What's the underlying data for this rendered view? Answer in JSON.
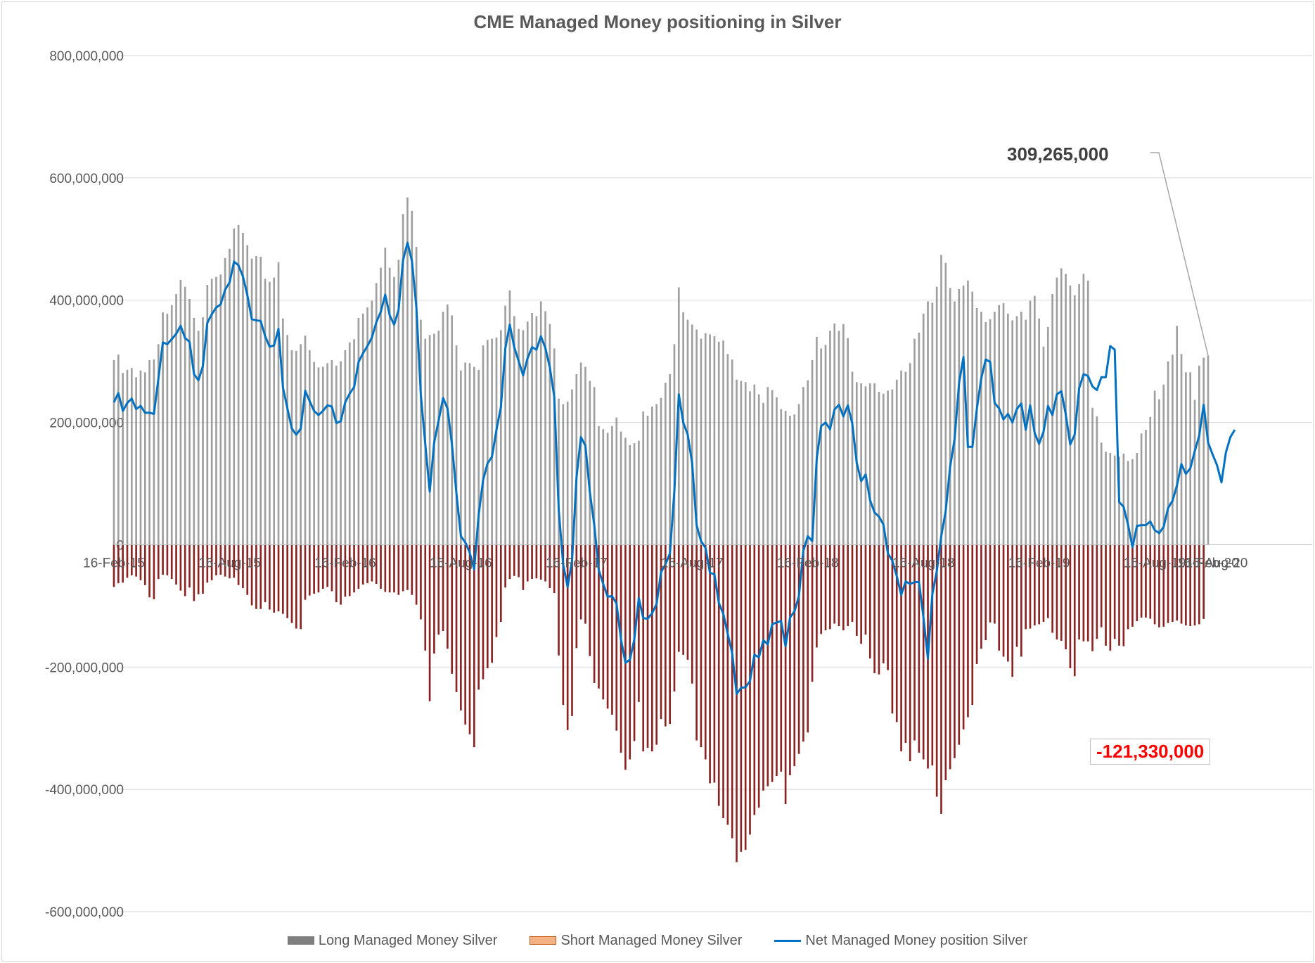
{
  "chart_data": {
    "type": "bar",
    "title": "CME Managed Money positioning in Silver",
    "ylim": [
      -600000000,
      800000000
    ],
    "yticks": [
      800000000,
      600000000,
      400000000,
      200000000,
      0,
      -200000000,
      -400000000,
      -600000000
    ],
    "ytick_labels": [
      "800,000,000",
      "600,000,000",
      "400,000,000",
      "200,000,000",
      "0",
      "-200,000,000",
      "-400,000,000",
      "-600,000,000"
    ],
    "x_tick_labels": [
      "16-Feb-15",
      "16-Aug-15",
      "16-Feb-16",
      "16-Aug-16",
      "16-Feb-17",
      "16-Aug-17",
      "16-Feb-18",
      "16-Aug-18",
      "16-Feb-19",
      "16-Aug-19",
      "16-Feb-20",
      "16-Aug-20"
    ],
    "x_start": "2015-02-16",
    "period": "weekly",
    "grid": true,
    "legend_position": "bottom",
    "colors": {
      "long": "#7f7f7f",
      "short": "#8b2323",
      "net": "#0070c0",
      "grid": "#d9d9d9"
    },
    "series": [
      {
        "name": "Long Managed Money Silver",
        "values": [
          302000000.0,
          311000000.0,
          281000000.0,
          286000000.0,
          289000000.0,
          274000000.0,
          285000000.0,
          282000000.0,
          302000000.0,
          303000000.0,
          328000000.0,
          380000000.0,
          378000000.0,
          392000000.0,
          410000000.0,
          433000000.0,
          422000000.0,
          402000000.0,
          371000000.0,
          350000000.0,
          372000000.0,
          425000000.0,
          435000000.0,
          438000000.0,
          442000000.0,
          469000000.0,
          484000000.0,
          517000000.0,
          523000000.0,
          510000000.0,
          490000000.0,
          468000000.0,
          472000000.0,
          471000000.0,
          435000000.0,
          430000000.0,
          437000000.0,
          462000000.0,
          370000000.0,
          343000000.0,
          318000000.0,
          317000000.0,
          328000000.0,
          342000000.0,
          318000000.0,
          299000000.0,
          290000000.0,
          291000000.0,
          297000000.0,
          302000000.0,
          293000000.0,
          300000000.0,
          318000000.0,
          331000000.0,
          336000000.0,
          371000000.0,
          378000000.0,
          388000000.0,
          399000000.0,
          428000000.0,
          453000000.0,
          486000000.0,
          453000000.0,
          438000000.0,
          466000000.0,
          541000000.0,
          568000000.0,
          546000000.0,
          487000000.0,
          368000000.0,
          337000000.0,
          343000000.0,
          345000000.0,
          350000000.0,
          381000000.0,
          393000000.0,
          375000000.0,
          326000000.0,
          285000000.0,
          298000000.0,
          297000000.0,
          291000000.0,
          286000000.0,
          326000000.0,
          335000000.0,
          337000000.0,
          339000000.0,
          351000000.0,
          391000000.0,
          416000000.0,
          374000000.0,
          353000000.0,
          351000000.0,
          365000000.0,
          379000000.0,
          374000000.0,
          398000000.0,
          382000000.0,
          361000000.0,
          321000000.0,
          239000000.0,
          230000000.0,
          234000000.0,
          254000000.0,
          279000000.0,
          298000000.0,
          291000000.0,
          268000000.0,
          258000000.0,
          194000000.0,
          189000000.0,
          183000000.0,
          194000000.0,
          208000000.0,
          185000000.0,
          175000000.0,
          163000000.0,
          166000000.0,
          170000000.0,
          218000000.0,
          211000000.0,
          226000000.0,
          230000000.0,
          240000000.0,
          265000000.0,
          279000000.0,
          328000000.0,
          421000000.0,
          380000000.0,
          368000000.0,
          360000000.0,
          352000000.0,
          337000000.0,
          346000000.0,
          344000000.0,
          341000000.0,
          332000000.0,
          334000000.0,
          312000000.0,
          303000000.0,
          270000000.0,
          268000000.0,
          266000000.0,
          251000000.0,
          262000000.0,
          246000000.0,
          232000000.0,
          258000000.0,
          253000000.0,
          241000000.0,
          222000000.0,
          219000000.0,
          211000000.0,
          213000000.0,
          230000000.0,
          258000000.0,
          269000000.0,
          302000000.0,
          340000000.0,
          321000000.0,
          327000000.0,
          350000000.0,
          362000000.0,
          350000000.0,
          361000000.0,
          338000000.0,
          283000000.0,
          266000000.0,
          264000000.0,
          259000000.0,
          264000000.0,
          264000000.0,
          250000000.0,
          247000000.0,
          252000000.0,
          254000000.0,
          270000000.0,
          285000000.0,
          283000000.0,
          297000000.0,
          337000000.0,
          347000000.0,
          378000000.0,
          398000000.0,
          396000000.0,
          422000000.0,
          474000000.0,
          461000000.0,
          420000000.0,
          398000000.0,
          418000000.0,
          424000000.0,
          432000000.0,
          414000000.0,
          387000000.0,
          381000000.0,
          364000000.0,
          369000000.0,
          381000000.0,
          392000000.0,
          395000000.0,
          378000000.0,
          367000000.0,
          374000000.0,
          381000000.0,
          368000000.0,
          399000000.0,
          407000000.0,
          370000000.0,
          324000000.0,
          356000000.0,
          410000000.0,
          437000000.0,
          452000000.0,
          443000000.0,
          424000000.0,
          408000000.0,
          426000000.0,
          443000000.0,
          432000000.0,
          224000000.0,
          210000000.0,
          167000000.0,
          152000000.0,
          150000000.0,
          146000000.0,
          144000000.0,
          149000000.0,
          137000000.0,
          140000000.0,
          150000000.0,
          182000000.0,
          188000000.0,
          209000000.0,
          252000000.0,
          238000000.0,
          262000000.0,
          300000000.0,
          311000000.0,
          358000000.0,
          312000000.0,
          282000000.0,
          282000000.0,
          237000000.0,
          293000000.0,
          306000000.0,
          309265000.0
        ]
      },
      {
        "name": "Short Managed Money Silver",
        "values": [
          -69000000.0,
          -63000000.0,
          -62000000.0,
          -54000000.0,
          -50000000.0,
          -52000000.0,
          -58000000.0,
          -66000000.0,
          -86000000.0,
          -89000000.0,
          -56000000.0,
          -49000000.0,
          -50000000.0,
          -56000000.0,
          -65000000.0,
          -75000000.0,
          -84000000.0,
          -70000000.0,
          -92000000.0,
          -81000000.0,
          -80000000.0,
          -62000000.0,
          -58000000.0,
          -50000000.0,
          -49000000.0,
          -52000000.0,
          -55000000.0,
          -54000000.0,
          -66000000.0,
          -71000000.0,
          -82000000.0,
          -99000000.0,
          -105000000.0,
          -105000000.0,
          -94000000.0,
          -106000000.0,
          -111000000.0,
          -109000000.0,
          -113000000.0,
          -120000000.0,
          -128000000.0,
          -137000000.0,
          -138000000.0,
          -90000000.0,
          -83000000.0,
          -80000000.0,
          -78000000.0,
          -72000000.0,
          -69000000.0,
          -76000000.0,
          -94000000.0,
          -98000000.0,
          -85000000.0,
          -84000000.0,
          -78000000.0,
          -72000000.0,
          -65000000.0,
          -63000000.0,
          -60000000.0,
          -64000000.0,
          -72000000.0,
          -77000000.0,
          -78000000.0,
          -78000000.0,
          -82000000.0,
          -76000000.0,
          -74000000.0,
          -82000000.0,
          -98000000.0,
          -122000000.0,
          -173000000.0,
          -256000000.0,
          -178000000.0,
          -147000000.0,
          -141000000.0,
          -170000000.0,
          -211000000.0,
          -241000000.0,
          -271000000.0,
          -294000000.0,
          -310000000.0,
          -331000000.0,
          -237000000.0,
          -220000000.0,
          -202000000.0,
          -193000000.0,
          -151000000.0,
          -126000000.0,
          -70000000.0,
          -56000000.0,
          -51000000.0,
          -53000000.0,
          -74000000.0,
          -60000000.0,
          -56000000.0,
          -55000000.0,
          -57000000.0,
          -60000000.0,
          -71000000.0,
          -79000000.0,
          -181000000.0,
          -262000000.0,
          -303000000.0,
          -280000000.0,
          -169000000.0,
          -122000000.0,
          -129000000.0,
          -182000000.0,
          -226000000.0,
          -235000000.0,
          -253000000.0,
          -268000000.0,
          -278000000.0,
          -304000000.0,
          -340000000.0,
          -368000000.0,
          -351000000.0,
          -321000000.0,
          -257000000.0,
          -338000000.0,
          -332000000.0,
          -338000000.0,
          -327000000.0,
          -285000000.0,
          -297000000.0,
          -293000000.0,
          -240000000.0,
          -175000000.0,
          -180000000.0,
          -188000000.0,
          -227000000.0,
          -320000000.0,
          -331000000.0,
          -351000000.0,
          -390000000.0,
          -389000000.0,
          -427000000.0,
          -447000000.0,
          -458000000.0,
          -480000000.0,
          -519000000.0,
          -502000000.0,
          -499000000.0,
          -474000000.0,
          -442000000.0,
          -430000000.0,
          -402000000.0,
          -395000000.0,
          -388000000.0,
          -378000000.0,
          -371000000.0,
          -424000000.0,
          -377000000.0,
          -362000000.0,
          -342000000.0,
          -322000000.0,
          -307000000.0,
          -224000000.0,
          -168000000.0,
          -146000000.0,
          -140000000.0,
          -138000000.0,
          -129000000.0,
          -133000000.0,
          -140000000.0,
          -133000000.0,
          -126000000.0,
          -149000000.0,
          -162000000.0,
          -147000000.0,
          -186000000.0,
          -210000000.0,
          -212000000.0,
          -194000000.0,
          -205000000.0,
          -276000000.0,
          -290000000.0,
          -338000000.0,
          -324000000.0,
          -354000000.0,
          -320000000.0,
          -340000000.0,
          -351000000.0,
          -366000000.0,
          -361000000.0,
          -412000000.0,
          -440000000.0,
          -385000000.0,
          -367000000.0,
          -349000000.0,
          -327000000.0,
          -302000000.0,
          -282000000.0,
          -262000000.0,
          -195000000.0,
          -170000000.0,
          -156000000.0,
          -127000000.0,
          -129000000.0,
          -173000000.0,
          -183000000.0,
          -191000000.0,
          -216000000.0,
          -167000000.0,
          -183000000.0,
          -138000000.0,
          -137000000.0,
          -132000000.0,
          -130000000.0,
          -126000000.0,
          -120000000.0,
          -144000000.0,
          -155000000.0,
          -157000000.0,
          -171000000.0,
          -202000000.0,
          -215000000.0,
          -155000000.0,
          -158000000.0,
          -158000000.0,
          -174000000.0,
          -154000000.0,
          -135000000.0,
          -165000000.0,
          -173000000.0,
          -154000000.0,
          -165000000.0,
          -166000000.0,
          -138000000.0,
          -134000000.0,
          -125000000.0,
          -119000000.0,
          -119000000.0,
          -121000000.0,
          -130000000.0,
          -135000000.0,
          -134000000.0,
          -128000000.0,
          -126000000.0,
          -124000000.0,
          -129000000.0,
          -132000000.0,
          -133000000.0,
          -132000000.0,
          -130000000.0,
          -121330000.0
        ]
      },
      {
        "name": "Net Managed Money position Silver",
        "type": "line",
        "values": [
          233000000.0,
          248000000.0,
          219000000.0,
          232000000.0,
          239000000.0,
          222000000.0,
          227000000.0,
          216000000.0,
          216000000.0,
          214000000.0,
          272000000.0,
          331000000.0,
          328000000.0,
          336000000.0,
          345000000.0,
          358000000.0,
          338000000.0,
          332000000.0,
          279000000.0,
          269000000.0,
          292000000.0,
          363000000.0,
          377000000.0,
          388000000.0,
          393000000.0,
          417000000.0,
          429000000.0,
          463000000.0,
          457000000.0,
          439000000.0,
          408000000.0,
          369000000.0,
          367000000.0,
          366000000.0,
          341000000.0,
          324000000.0,
          326000000.0,
          353000000.0,
          257000000.0,
          223000000.0,
          190000000.0,
          180000000.0,
          190000000.0,
          252000000.0,
          235000000.0,
          219000000.0,
          212000000.0,
          219000000.0,
          228000000.0,
          226000000.0,
          199000000.0,
          202000000.0,
          233000000.0,
          247000000.0,
          258000000.0,
          299000000.0,
          313000000.0,
          325000000.0,
          339000000.0,
          364000000.0,
          381000000.0,
          409000000.0,
          375000000.0,
          360000000.0,
          384000000.0,
          465000000.0,
          494000000.0,
          464000000.0,
          389000000.0,
          246000000.0,
          164000000.0,
          87000000.0,
          167000000.0,
          203000000.0,
          240000000.0,
          223000000.0,
          164000000.0,
          85000000.0,
          14000000.0,
          4000000.0,
          -13000000.0,
          -40000000.0,
          49000000.0,
          106000000.0,
          133000000.0,
          144000000.0,
          188000000.0,
          225000000.0,
          321000000.0,
          360000000.0,
          323000000.0,
          300000000.0,
          277000000.0,
          305000000.0,
          323000000.0,
          319000000.0,
          341000000.0,
          322000000.0,
          290000000.0,
          242000000.0,
          58000000.0,
          -32000000.0,
          -69000000.0,
          -26000000.0,
          110000000.0,
          176000000.0,
          162000000.0,
          86000000.0,
          32000000.0,
          -41000000.0,
          -64000000.0,
          -85000000.0,
          -84000000.0,
          -96000000.0,
          -155000000.0,
          -193000000.0,
          -188000000.0,
          -155000000.0,
          -87000000.0,
          -120000000.0,
          -121000000.0,
          -112000000.0,
          -97000000.0,
          -45000000.0,
          -32000000.0,
          -14000000.0,
          88000000.0,
          246000000.0,
          200000000.0,
          180000000.0,
          133000000.0,
          32000000.0,
          6000000.0,
          -5000000.0,
          -46000000.0,
          -48000000.0,
          -95000000.0,
          -113000000.0,
          -146000000.0,
          -177000000.0,
          -244000000.0,
          -234000000.0,
          -233000000.0,
          -223000000.0,
          -180000000.0,
          -184000000.0,
          -156000000.0,
          -163000000.0,
          -130000000.0,
          -127000000.0,
          -125000000.0,
          -166000000.0,
          -119000000.0,
          -109000000.0,
          -84000000.0,
          -10000000.0,
          14000000.0,
          6000000.0,
          140000000.0,
          194000000.0,
          200000000.0,
          189000000.0,
          221000000.0,
          229000000.0,
          210000000.0,
          228000000.0,
          198000000.0,
          134000000.0,
          104000000.0,
          115000000.0,
          73000000.0,
          53000000.0,
          46000000.0,
          33000000.0,
          -14000000.0,
          -26000000.0,
          -51000000.0,
          -82000000.0,
          -60000000.0,
          -64000000.0,
          -61000000.0,
          -61000000.0,
          -119000000.0,
          -186000000.0,
          -81000000.0,
          -43000000.0,
          14000000.0,
          55000000.0,
          127000000.0,
          173000000.0,
          264000000.0,
          307000000.0,
          160000000.0,
          160000000.0,
          222000000.0,
          272000000.0,
          303000000.0,
          299000000.0,
          232000000.0,
          223000000.0,
          205000000.0,
          214000000.0,
          200000000.0,
          222000000.0,
          231000000.0,
          188000000.0,
          228000000.0,
          183000000.0,
          165000000.0,
          185000000.0,
          227000000.0,
          212000000.0,
          246000000.0,
          251000000.0,
          213000000.0,
          164000000.0,
          180000000.0,
          256000000.0,
          279000000.0,
          276000000.0,
          259000000.0,
          253000000.0,
          274000000.0,
          274000000.0,
          325000000.0,
          319000000.0,
          70000000.0,
          62000000.0,
          33000000.0,
          -4000000.0,
          31000000.0,
          32000000.0,
          32000000.0,
          38000000.0,
          24000000.0,
          19000000.0,
          29000000.0,
          60000000.0,
          72000000.0,
          97000000.0,
          132000000.0,
          116000000.0,
          125000000.0,
          153000000.0,
          178000000.0,
          229000000.0,
          167000000.0,
          148000000.0,
          130000000.0,
          102000000.0,
          151000000.0,
          176000000.0,
          187935000.0
        ]
      }
    ],
    "annotations": [
      {
        "text": "309,265,000",
        "target_series": "Long Managed Money Silver",
        "target": "last"
      },
      {
        "text": "-121,330,000",
        "target_series": "Short Managed Money Silver",
        "target": "last"
      }
    ]
  }
}
